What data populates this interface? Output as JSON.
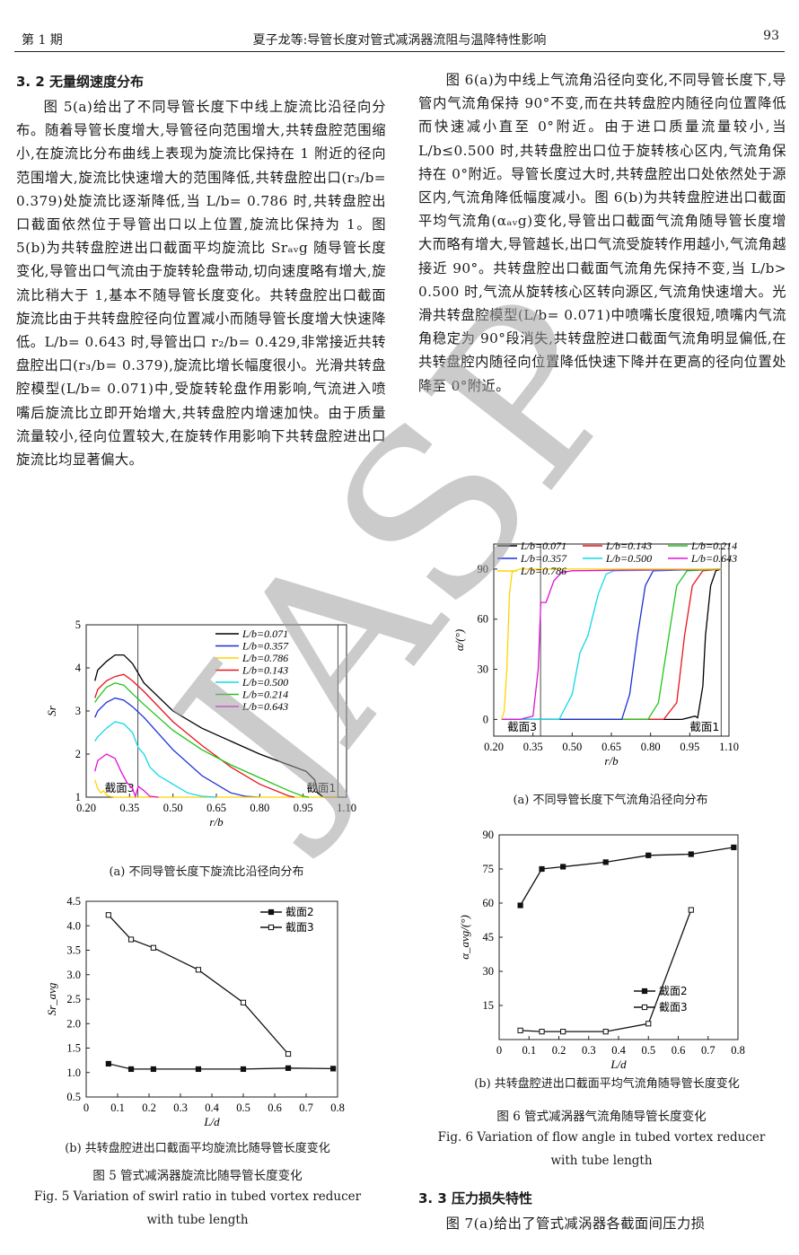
{
  "header": {
    "issue": "第 1 期",
    "title": "夏子龙等:导管长度对管式减涡器流阻与温降特性影响",
    "page_number": "93"
  },
  "section_3_2": {
    "title": "3. 2  无量纲速度分布",
    "paragraph": "图 5(a)给出了不同导管长度下中线上旋流比沿径向分布。随着导管长度增大,导管径向范围增大,共转盘腔范围缩小,在旋流比分布曲线上表现为旋流比保持在 1 附近的径向范围增大,旋流比快速增大的范围降低,共转盘腔出口(r₃/b= 0.379)处旋流比逐渐降低,当 L/b= 0.786 时,共转盘腔出口截面依然位于导管出口以上位置,旋流比保持为 1。图 5(b)为共转盘腔进出口截面平均旋流比 Srₐᵥg 随导管长度变化,导管出口气流由于旋转轮盘带动,切向速度略有增大,旋流比稍大于 1,基本不随导管长度变化。共转盘腔出口截面旋流比由于共转盘腔径向位置减小而随导管长度增大快速降低。L/b= 0.643 时,导管出口 r₂/b= 0.429,非常接近共转盘腔出口(r₃/b= 0.379),旋流比增长幅度很小。光滑共转盘腔模型(L/b= 0.071)中,受旋转轮盘作用影响,气流进入喷嘴后旋流比立即开始增大,共转盘腔内增速加快。由于质量流量较小,径向位置较大,在旋转作用影响下共转盘腔进出口旋流比均显著偏大。"
  },
  "right_paragraph": "图 6(a)为中线上气流角沿径向变化,不同导管长度下,导管内气流角保持 90°不变,而在共转盘腔内随径向位置降低而快速减小直至 0°附近。由于进口质量流量较小,当 L/b≤0.500 时,共转盘腔出口位于旋转核心区内,气流角保持在 0°附近。导管长度过大时,共转盘腔出口处依然处于源区内,气流角降低幅度减小。图 6(b)为共转盘腔进出口截面平均气流角(αₐᵥg)变化,导管出口截面气流角随导管长度增大而略有增大,导管越长,出口气流受旋转作用越小,气流角越接近 90°。共转盘腔出口截面气流角先保持不变,当 L/b> 0.500 时,气流从旋转核心区转向源区,气流角快速增大。光滑共转盘腔模型(L/b= 0.071)中喷嘴长度很短,喷嘴内气流角稳定为 90°段消失,共转盘腔进口截面气流角明显偏低,在共转盘腔内随径向位置降低快速下降并在更高的径向位置处降至 0°附近。",
  "fig5": {
    "sub_a_caption": "(a) 不同导管长度下旋流比沿径向分布",
    "sub_b_caption": "(b) 共转盘腔进出口截面平均旋流比随导管长度变化",
    "caption_cn": "图 5   管式减涡器旋流比随导管长度变化",
    "caption_en_1": "Fig. 5   Variation of swirl ratio in tubed vortex reducer",
    "caption_en_2": "with tube length"
  },
  "fig6": {
    "sub_a_caption": "(a) 不同导管长度下气流角沿径向分布",
    "sub_b_caption": "(b) 共转盘腔进出口截面平均气流角随导管长度变化",
    "caption_cn": "图 6   管式减涡器气流角随导管长度变化",
    "caption_en_1": "Fig. 6   Variation of flow angle in tubed vortex reducer",
    "caption_en_2": "with tube length"
  },
  "section_3_3": {
    "title": "3. 3   压力损失特性",
    "paragraph_start": "图 7(a)给出了管式减涡器各截面间压力损"
  },
  "watermark": "JASP",
  "chart_data": [
    {
      "id": "fig5a",
      "type": "line",
      "xlabel": "r/b",
      "ylabel": "Sr",
      "xlim": [
        0.2,
        1.1
      ],
      "ylim": [
        1,
        5
      ],
      "xticks": [
        "0.20",
        "0.35",
        "0.50",
        "0.65",
        "0.80",
        "0.95",
        "1.10"
      ],
      "yticks": [
        "1",
        "2",
        "3",
        "4",
        "5"
      ],
      "legend_position": "top-right",
      "annotations": [
        {
          "text": "截面3",
          "x": 0.379
        },
        {
          "text": "截面1",
          "x": 1.07
        }
      ],
      "series": [
        {
          "name": "L/b=0.071",
          "color": "#000000",
          "x": [
            0.23,
            0.24,
            0.27,
            0.3,
            0.33,
            0.36,
            0.4,
            0.5,
            0.6,
            0.7,
            0.8,
            0.9,
            0.96,
            0.99,
            1.0,
            1.02,
            1.07
          ],
          "y": [
            3.7,
            3.95,
            4.15,
            4.3,
            4.3,
            4.1,
            3.65,
            3.0,
            2.6,
            2.3,
            2.0,
            1.75,
            1.6,
            1.4,
            1.1,
            1.0,
            1.0
          ]
        },
        {
          "name": "L/b=0.357",
          "color": "#1c2fd8",
          "x": [
            0.23,
            0.24,
            0.27,
            0.3,
            0.33,
            0.36,
            0.4,
            0.5,
            0.6,
            0.7,
            0.75,
            0.8
          ],
          "y": [
            2.85,
            3.0,
            3.2,
            3.3,
            3.25,
            3.1,
            2.85,
            2.1,
            1.5,
            1.1,
            1.02,
            1.0
          ]
        },
        {
          "name": "L/b=0.786",
          "color": "#ffd400",
          "x": [
            0.23,
            0.24,
            0.25,
            0.26,
            0.27,
            0.28,
            0.3,
            0.4,
            0.6,
            0.8,
            1.0,
            1.07
          ],
          "y": [
            1.4,
            1.2,
            1.1,
            1.15,
            1.05,
            1.02,
            1.0,
            1.0,
            1.0,
            1.0,
            1.0,
            1.0
          ]
        },
        {
          "name": "L/b=0.143",
          "color": "#e8141a",
          "x": [
            0.23,
            0.24,
            0.27,
            0.3,
            0.33,
            0.36,
            0.4,
            0.5,
            0.6,
            0.7,
            0.8,
            0.9,
            0.92
          ],
          "y": [
            3.3,
            3.5,
            3.7,
            3.8,
            3.85,
            3.7,
            3.45,
            2.75,
            2.2,
            1.7,
            1.3,
            1.03,
            1.0
          ]
        },
        {
          "name": "L/b=0.500",
          "color": "#10d8e8",
          "x": [
            0.23,
            0.24,
            0.27,
            0.3,
            0.33,
            0.36,
            0.38,
            0.4,
            0.42,
            0.45,
            0.5,
            0.55,
            0.6,
            0.65
          ],
          "y": [
            2.3,
            2.4,
            2.6,
            2.75,
            2.7,
            2.5,
            2.15,
            2.0,
            1.7,
            1.5,
            1.3,
            1.1,
            1.02,
            1.0
          ]
        },
        {
          "name": "L/b=0.214",
          "color": "#22c41a",
          "x": [
            0.23,
            0.24,
            0.27,
            0.3,
            0.33,
            0.36,
            0.4,
            0.5,
            0.6,
            0.7,
            0.8,
            0.9,
            0.95,
            0.97
          ],
          "y": [
            3.2,
            3.3,
            3.55,
            3.65,
            3.6,
            3.4,
            3.15,
            2.55,
            2.1,
            1.75,
            1.45,
            1.15,
            1.02,
            1.0
          ]
        },
        {
          "name": "L/b=0.643",
          "color": "#e010d8",
          "x": [
            0.23,
            0.24,
            0.27,
            0.3,
            0.32,
            0.34,
            0.36,
            0.37,
            0.38,
            0.4,
            0.42,
            0.45
          ],
          "y": [
            1.6,
            1.85,
            2.0,
            1.9,
            1.6,
            1.35,
            1.2,
            1.02,
            1.25,
            1.15,
            1.02,
            1.0
          ]
        }
      ]
    },
    {
      "id": "fig5b",
      "type": "line",
      "xlabel": "L/d",
      "ylabel": "Sr_avg",
      "xlim": [
        0,
        0.8
      ],
      "ylim": [
        0.5,
        4.5
      ],
      "xticks": [
        "0",
        "0.1",
        "0.2",
        "0.3",
        "0.4",
        "0.5",
        "0.6",
        "0.7",
        "0.8"
      ],
      "yticks": [
        "0.5",
        "1.0",
        "1.5",
        "2.0",
        "2.5",
        "3.0",
        "3.5",
        "4.0",
        "4.5"
      ],
      "legend_position": "top-right",
      "series": [
        {
          "name": "截面2",
          "marker": "filled-square",
          "x": [
            0.071,
            0.143,
            0.214,
            0.357,
            0.5,
            0.643,
            0.786
          ],
          "y": [
            1.18,
            1.07,
            1.07,
            1.07,
            1.07,
            1.09,
            1.08
          ]
        },
        {
          "name": "截面3",
          "marker": "open-square",
          "x": [
            0.071,
            0.143,
            0.214,
            0.357,
            0.5,
            0.643
          ],
          "y": [
            4.22,
            3.72,
            3.55,
            3.1,
            2.43,
            1.38
          ]
        }
      ]
    },
    {
      "id": "fig6a",
      "type": "line",
      "xlabel": "r/b",
      "ylabel": "α/(°)",
      "xlim": [
        0.2,
        1.1
      ],
      "ylim": [
        -10,
        105
      ],
      "xticks": [
        "0.20",
        "0.35",
        "0.50",
        "0.65",
        "0.80",
        "0.95",
        "1.10"
      ],
      "yticks": [
        "0",
        "30",
        "60",
        "90"
      ],
      "legend_position": "top",
      "annotations": [
        {
          "text": "截面3",
          "x": 0.379
        },
        {
          "text": "截面1",
          "x": 1.07
        }
      ],
      "series": [
        {
          "name": "L/b=0.071",
          "color": "#000000",
          "x": [
            0.23,
            0.3,
            0.4,
            0.6,
            0.8,
            0.92,
            0.97,
            0.98,
            1.0,
            1.01,
            1.03,
            1.05,
            1.07
          ],
          "y": [
            0,
            0,
            0,
            0,
            0,
            0,
            2,
            1,
            20,
            50,
            80,
            89,
            90
          ]
        },
        {
          "name": "L/b=0.143",
          "color": "#e8141a",
          "x": [
            0.23,
            0.4,
            0.6,
            0.85,
            0.9,
            0.93,
            0.96,
            1.0,
            1.07
          ],
          "y": [
            0,
            0,
            0,
            0,
            10,
            50,
            80,
            89,
            90
          ]
        },
        {
          "name": "L/b=0.214",
          "color": "#22c41a",
          "x": [
            0.23,
            0.4,
            0.6,
            0.79,
            0.83,
            0.87,
            0.9,
            0.94,
            1.07
          ],
          "y": [
            0,
            0,
            0,
            0,
            10,
            50,
            80,
            89,
            90
          ]
        },
        {
          "name": "L/b=0.357",
          "color": "#1c2fd8",
          "x": [
            0.23,
            0.4,
            0.6,
            0.69,
            0.72,
            0.75,
            0.78,
            0.81,
            1.07
          ],
          "y": [
            0,
            0,
            0,
            0,
            15,
            50,
            80,
            89,
            90
          ]
        },
        {
          "name": "L/b=0.500",
          "color": "#10d8e8",
          "x": [
            0.23,
            0.4,
            0.45,
            0.5,
            0.53,
            0.56,
            0.6,
            0.63,
            0.66,
            1.07
          ],
          "y": [
            0,
            0,
            0,
            15,
            40,
            50,
            75,
            87,
            89,
            90
          ]
        },
        {
          "name": "L/b=0.643",
          "color": "#e010d8",
          "x": [
            0.23,
            0.3,
            0.35,
            0.37,
            0.38,
            0.4,
            0.43,
            0.46,
            0.5,
            1.07
          ],
          "y": [
            0,
            0,
            2,
            30,
            70,
            70,
            83,
            88,
            89,
            90
          ]
        },
        {
          "name": "L/b=0.786",
          "color": "#ffd400",
          "x": [
            0.23,
            0.24,
            0.25,
            0.26,
            0.27,
            0.28,
            0.3,
            0.4,
            1.07
          ],
          "y": [
            0,
            5,
            30,
            75,
            88,
            89,
            90,
            90,
            90
          ]
        }
      ]
    },
    {
      "id": "fig6b",
      "type": "line",
      "xlabel": "L/d",
      "ylabel": "α_avg/(°)",
      "xlim": [
        0,
        0.8
      ],
      "ylim": [
        0,
        90
      ],
      "xticks": [
        "0",
        "0.1",
        "0.2",
        "0.3",
        "0.4",
        "0.5",
        "0.6",
        "0.7",
        "0.8"
      ],
      "yticks": [
        "15",
        "30",
        "45",
        "60",
        "75",
        "90"
      ],
      "legend_position": "bottom-right",
      "series": [
        {
          "name": "截面2",
          "marker": "filled-square",
          "x": [
            0.071,
            0.143,
            0.214,
            0.357,
            0.5,
            0.643,
            0.786
          ],
          "y": [
            59,
            75,
            76,
            78,
            81,
            81.5,
            84.5
          ]
        },
        {
          "name": "截面3",
          "marker": "open-square",
          "x": [
            0.071,
            0.143,
            0.214,
            0.357,
            0.5,
            0.643
          ],
          "y": [
            4,
            3.5,
            3.5,
            3.5,
            7,
            57
          ]
        }
      ]
    }
  ]
}
